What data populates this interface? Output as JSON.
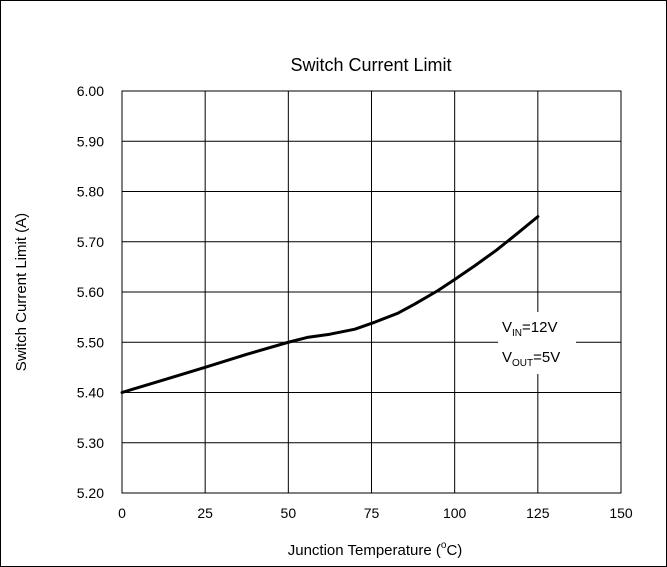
{
  "chart_data": {
    "type": "line",
    "title": "Switch Current Limit",
    "xlabel_prefix": "Junction Temperature (",
    "xlabel_sup": "o",
    "xlabel_suffix": "C)",
    "ylabel": "Switch Current Limit (A)",
    "xlim": [
      0,
      150
    ],
    "ylim": [
      5.2,
      6.0
    ],
    "x_ticks": [
      "0",
      "25",
      "50",
      "75",
      "100",
      "125",
      "150"
    ],
    "y_ticks": [
      "5.20",
      "5.30",
      "5.40",
      "5.50",
      "5.60",
      "5.70",
      "5.80",
      "5.90",
      "6.00"
    ],
    "grid": true,
    "series": [
      {
        "x": [
          0,
          12.5,
          25,
          37.5,
          50,
          56,
          62.5,
          70,
          76,
          83,
          88,
          95,
          100,
          106,
          112.5,
          118.75,
          125
        ],
        "y": [
          5.4,
          5.425,
          5.45,
          5.476,
          5.5,
          5.51,
          5.516,
          5.526,
          5.54,
          5.558,
          5.576,
          5.603,
          5.625,
          5.652,
          5.683,
          5.716,
          5.75
        ]
      }
    ],
    "annotations": {
      "vin_main": "V",
      "vin_sub": "IN",
      "vin_value": "=12V",
      "vout_main": "V",
      "vout_sub": "OUT",
      "vout_value": "=5V"
    },
    "line_color": "#000000",
    "grid_color": "#000000"
  }
}
